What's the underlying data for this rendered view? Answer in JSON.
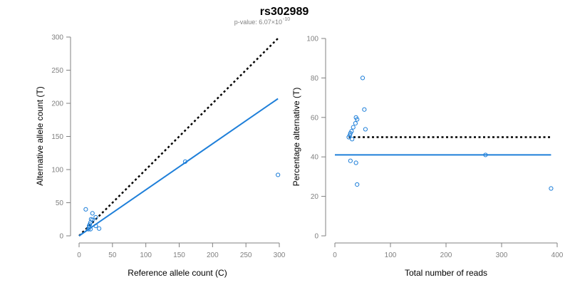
{
  "title": "rs302989",
  "subtitle": {
    "prefix": "p-value: 6.07×10",
    "exponent": "-10"
  },
  "chart_data": [
    {
      "type": "scatter",
      "xlabel": "Reference allele count (C)",
      "ylabel": "Alternative allele count (T)",
      "xlim": [
        0,
        300
      ],
      "ylim": [
        0,
        300
      ],
      "xticks": [
        "0",
        "50",
        "100",
        "150",
        "200",
        "250",
        "300"
      ],
      "yticks": [
        "0",
        "50",
        "100",
        "150",
        "200",
        "250",
        "300"
      ],
      "point_color": "#1e7fd9",
      "points": [
        [
          10,
          40
        ],
        [
          14,
          10
        ],
        [
          15,
          13
        ],
        [
          15,
          15
        ],
        [
          16,
          17
        ],
        [
          17,
          20
        ],
        [
          18,
          25
        ],
        [
          20,
          24
        ],
        [
          20,
          34
        ],
        [
          17,
          10
        ],
        [
          25,
          15
        ],
        [
          25,
          28
        ],
        [
          30,
          11
        ],
        [
          159,
          112
        ],
        [
          298,
          92
        ]
      ],
      "reference_line": {
        "style": "dotted",
        "color": "#000000",
        "x": [
          0,
          298
        ],
        "y": [
          0,
          298
        ]
      },
      "fit_line": {
        "style": "solid",
        "color": "#1e7fd9",
        "x": [
          0,
          298
        ],
        "y": [
          0,
          207
        ]
      },
      "grid": false
    },
    {
      "type": "scatter",
      "xlabel": "Total number of reads",
      "ylabel": "Percentage alternative (T)",
      "xlim": [
        0,
        400
      ],
      "ylim": [
        0,
        100
      ],
      "xticks": [
        "0",
        "100",
        "200",
        "300",
        "400"
      ],
      "yticks": [
        "0",
        "20",
        "40",
        "60",
        "80",
        "100"
      ],
      "point_color": "#1e7fd9",
      "points": [
        [
          25,
          50
        ],
        [
          27,
          51
        ],
        [
          28,
          52
        ],
        [
          30,
          53
        ],
        [
          31,
          49
        ],
        [
          33,
          55
        ],
        [
          28,
          38
        ],
        [
          37,
          57
        ],
        [
          38,
          60
        ],
        [
          40,
          59
        ],
        [
          38,
          37
        ],
        [
          40,
          26
        ],
        [
          50,
          80
        ],
        [
          53,
          64
        ],
        [
          55,
          54
        ],
        [
          271,
          41
        ],
        [
          389,
          24
        ]
      ],
      "reference_line": {
        "style": "dotted",
        "color": "#000000",
        "x": [
          25,
          389
        ],
        "y": [
          50,
          50
        ]
      },
      "fit_line": {
        "style": "solid",
        "color": "#1e7fd9",
        "x": [
          0,
          389
        ],
        "y": [
          41,
          41
        ]
      },
      "grid": false
    }
  ]
}
